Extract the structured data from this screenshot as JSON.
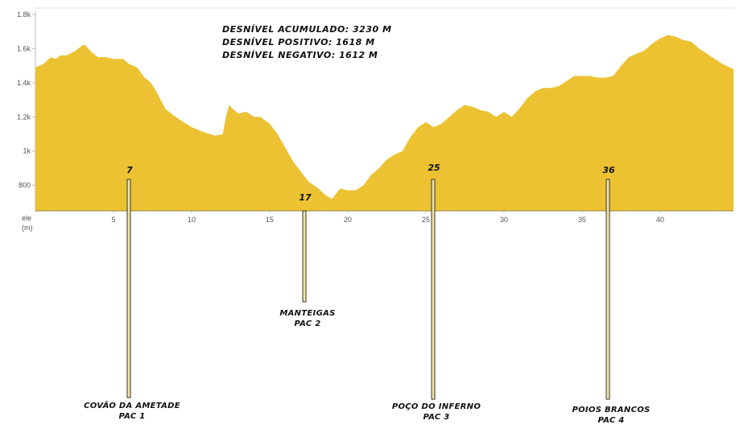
{
  "chart_data": {
    "type": "area",
    "title": "",
    "ylabel": "ele\n(m)",
    "ylabel_lines": [
      "ele",
      "(m)"
    ],
    "xlim": [
      0,
      44.7
    ],
    "ylim": [
      650,
      1800
    ],
    "x_ticks": [
      5,
      10,
      15,
      20,
      25,
      30,
      35,
      40
    ],
    "x_tick_labels": [
      "5",
      "10",
      "15",
      "20",
      "25",
      "30",
      "35",
      "40"
    ],
    "y_ticks": [
      800,
      1000,
      1200,
      1400,
      1600,
      1800
    ],
    "y_tick_labels": [
      "800",
      "1k",
      "1.2k",
      "1.4k",
      "1.6k",
      "1.8k"
    ],
    "grid": false,
    "series": [
      {
        "x": [
          0,
          0.5,
          1,
          1.3,
          1.6,
          2,
          2.6,
          3,
          3.2,
          3.6,
          4,
          4.5,
          5,
          5.6,
          6,
          6.5,
          7,
          7.4,
          7.8,
          8.3,
          8.7,
          9.3,
          10,
          10.8,
          11.5,
          12,
          12.2,
          12.4,
          12.6,
          13,
          13.5,
          14,
          14.4,
          15,
          15.5,
          16,
          16.5,
          17,
          17.5,
          18,
          18.6,
          19,
          19.5,
          20,
          20.5,
          21,
          21.5,
          22,
          22.5,
          23,
          23.5,
          24,
          24.5,
          25,
          25.5,
          26,
          26.5,
          27,
          27.5,
          28,
          28.5,
          29,
          29.5,
          30,
          30.5,
          31,
          31.5,
          32,
          32.5,
          33,
          33.5,
          34,
          34.5,
          35,
          35.5,
          36,
          36.5,
          37,
          37.5,
          38,
          38.5,
          39,
          39.5,
          40,
          40.5,
          41,
          41.5,
          42,
          42.5,
          43,
          43.5,
          44,
          44.7
        ],
        "y": [
          1490,
          1510,
          1550,
          1540,
          1560,
          1560,
          1590,
          1620,
          1620,
          1580,
          1550,
          1550,
          1540,
          1540,
          1510,
          1490,
          1430,
          1400,
          1340,
          1250,
          1220,
          1180,
          1140,
          1110,
          1090,
          1100,
          1200,
          1270,
          1250,
          1220,
          1230,
          1200,
          1200,
          1160,
          1100,
          1020,
          940,
          880,
          820,
          790,
          740,
          720,
          780,
          770,
          770,
          800,
          860,
          900,
          950,
          980,
          1000,
          1080,
          1140,
          1170,
          1140,
          1160,
          1200,
          1240,
          1270,
          1260,
          1240,
          1230,
          1200,
          1230,
          1200,
          1250,
          1310,
          1350,
          1370,
          1370,
          1380,
          1410,
          1440,
          1440,
          1440,
          1430,
          1430,
          1440,
          1500,
          1550,
          1570,
          1590,
          1630,
          1660,
          1680,
          1670,
          1650,
          1640,
          1600,
          1570,
          1540,
          1510,
          1480
        ]
      }
    ],
    "annotations": {
      "stats": [
        "DESNÍVEL ACUMULADO: 3230 M",
        "DESNÍVEL POSITIVO: 1618 M",
        "DESNÍVEL NEGATIVO: 1612 M"
      ],
      "checkpoints": [
        {
          "km": "7",
          "lines": [
            "COVÃO DA AMETADE",
            "PAC 1"
          ]
        },
        {
          "km": "17",
          "lines": [
            "MANTEIGAS",
            "PAC 2"
          ]
        },
        {
          "km": "25",
          "lines": [
            "POÇO DO INFERNO",
            "PAC 3"
          ]
        },
        {
          "km": "36",
          "lines": [
            "POIOS BRANCOS",
            "PAC 4"
          ]
        }
      ]
    },
    "colors": {
      "fill": "#ECC232",
      "axis": "#bbbbbb",
      "pole_fill": "#F0E6A6",
      "pole_stroke": "#333333",
      "text": "#111111"
    }
  }
}
